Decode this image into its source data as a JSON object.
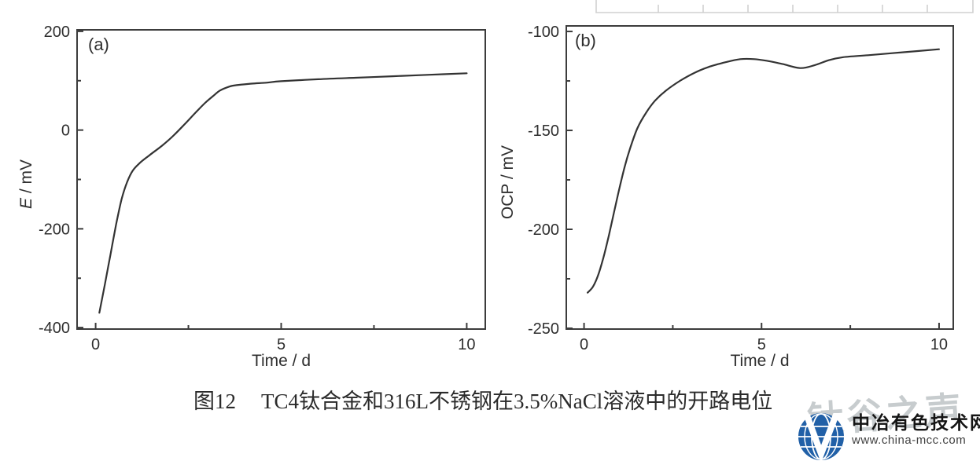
{
  "figure_caption": {
    "number": "图12",
    "text": "TC4钛合金和316L不锈钢在3.5%NaCl溶液中的开路电位"
  },
  "watermark": {
    "overlay_text": "钛谷之声",
    "site_name": "中冶有色技术网",
    "site_url": "www.china-mcc.com",
    "logo_blue": "#2160a7",
    "overlay_gray": "#c7ccce"
  },
  "chart_data": [
    {
      "id": "a",
      "type": "line",
      "panel_label": "(a)",
      "xlabel": "Time / d",
      "ylabel": "E / mV",
      "ylabel_parts": [
        {
          "text": "E",
          "italic": true
        },
        {
          "text": " / mV",
          "italic": false
        }
      ],
      "xlim": [
        -0.5,
        10.5
      ],
      "ylim": [
        -403,
        203
      ],
      "x_major_ticks": [
        0,
        5,
        10
      ],
      "x_minor_ticks": [
        2.5,
        7.5
      ],
      "y_major_ticks": [
        200,
        0,
        -200,
        -400
      ],
      "y_minor_ticks": [
        100,
        -100,
        -300
      ],
      "grid": false,
      "legend": "none",
      "axis_color": "#3c3c3c",
      "line_color": "#333333",
      "series": [
        {
          "name": "",
          "points": [
            [
              0.1,
              -370
            ],
            [
              0.25,
              -312
            ],
            [
              0.4,
              -252
            ],
            [
              0.55,
              -192
            ],
            [
              0.7,
              -140
            ],
            [
              0.85,
              -105
            ],
            [
              1.0,
              -82
            ],
            [
              1.2,
              -66
            ],
            [
              1.45,
              -51
            ],
            [
              1.8,
              -31
            ],
            [
              2.1,
              -11
            ],
            [
              2.4,
              12
            ],
            [
              2.7,
              36
            ],
            [
              2.95,
              55
            ],
            [
              3.15,
              68
            ],
            [
              3.35,
              80
            ],
            [
              3.6,
              88
            ],
            [
              3.8,
              91
            ],
            [
              4.2,
              94
            ],
            [
              4.6,
              96
            ],
            [
              5.0,
              99
            ],
            [
              6.0,
              103
            ],
            [
              7.0,
              106
            ],
            [
              8.0,
              109
            ],
            [
              9.0,
              112
            ],
            [
              10.0,
              115
            ]
          ]
        }
      ]
    },
    {
      "id": "b",
      "type": "line",
      "panel_label": "(b)",
      "xlabel": "Time / d",
      "ylabel": "OCP / mV",
      "ylabel_parts": [
        {
          "text": "OCP / mV",
          "italic": false
        }
      ],
      "xlim": [
        -0.5,
        10.4
      ],
      "ylim": [
        -250.4,
        -97.2
      ],
      "x_major_ticks": [
        0,
        5,
        10
      ],
      "x_minor_ticks": [
        2.5,
        7.5
      ],
      "y_major_ticks": [
        -100,
        -150,
        -200,
        -250
      ],
      "y_minor_ticks": [
        -125,
        -175,
        -225
      ],
      "grid": false,
      "legend": "none",
      "axis_color": "#3c3c3c",
      "line_color": "#333333",
      "series": [
        {
          "name": "",
          "points": [
            [
              0.1,
              -232
            ],
            [
              0.25,
              -229
            ],
            [
              0.4,
              -223
            ],
            [
              0.55,
              -214
            ],
            [
              0.7,
              -203
            ],
            [
              0.85,
              -191
            ],
            [
              1.0,
              -179
            ],
            [
              1.15,
              -168
            ],
            [
              1.3,
              -159
            ],
            [
              1.5,
              -149
            ],
            [
              1.75,
              -141
            ],
            [
              2.0,
              -135
            ],
            [
              2.3,
              -130
            ],
            [
              2.7,
              -125
            ],
            [
              3.1,
              -121
            ],
            [
              3.5,
              -118
            ],
            [
              4.0,
              -115.5
            ],
            [
              4.4,
              -114
            ],
            [
              4.8,
              -114
            ],
            [
              5.2,
              -115
            ],
            [
              5.6,
              -116.5
            ],
            [
              6.1,
              -118.5
            ],
            [
              6.5,
              -117
            ],
            [
              6.9,
              -114.5
            ],
            [
              7.3,
              -113
            ],
            [
              8.0,
              -112
            ],
            [
              9.0,
              -110.5
            ],
            [
              10.0,
              -109
            ]
          ]
        }
      ]
    }
  ]
}
